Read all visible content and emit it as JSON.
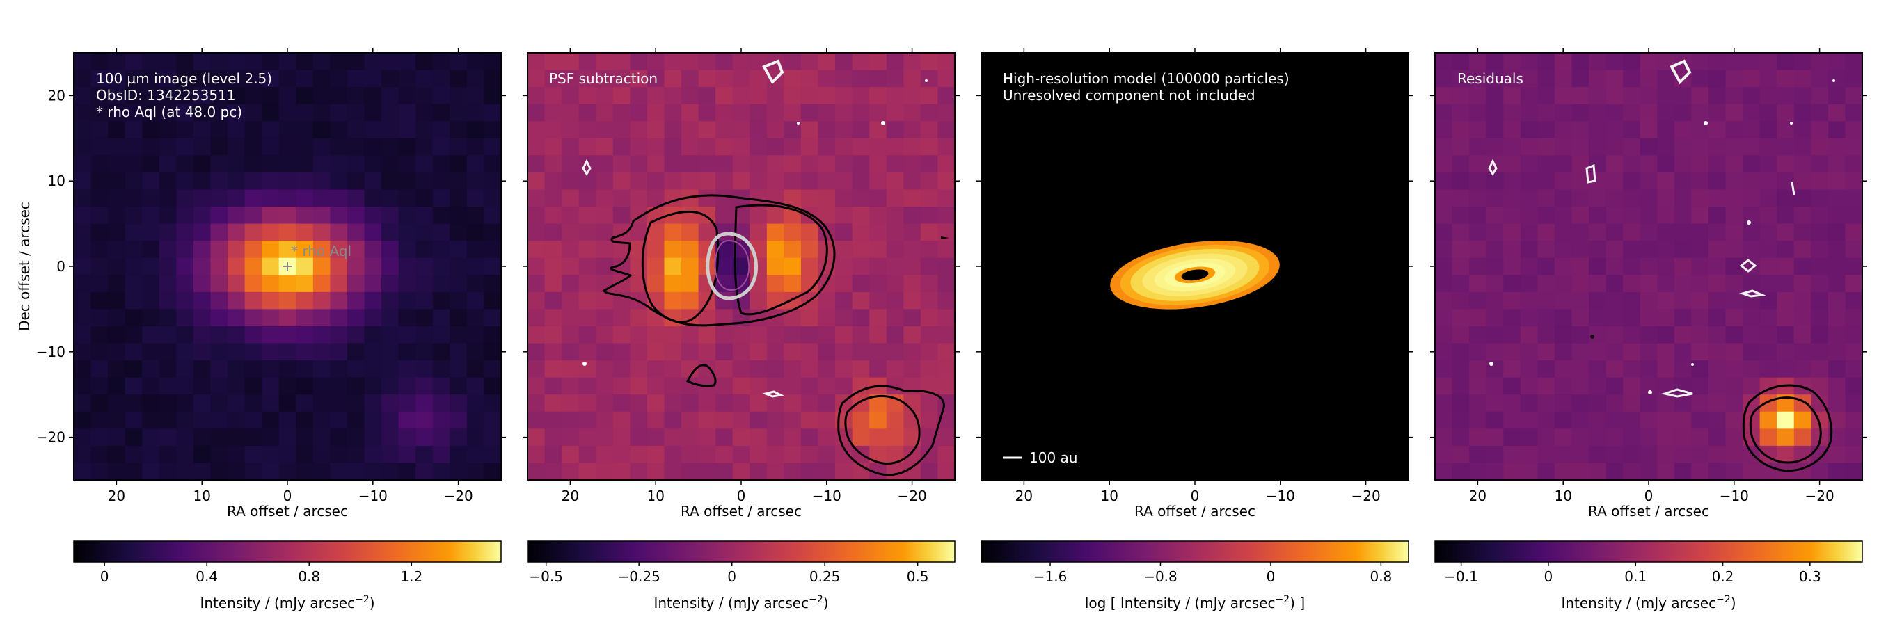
{
  "chart_data": [
    {
      "type": "heatmap",
      "panel_id": "p1",
      "annotation_lines": [
        "100 µm image (level 2.5)",
        "ObsID: 1342253511",
        "* rho Aql (at 48.0 pc)"
      ],
      "star_label": "* rho Aql",
      "star_position_arcsec": [
        0,
        0
      ],
      "xlabel": "RA offset / arcsec",
      "ylabel": "Dec offset / arcsec",
      "xlim": [
        25,
        -25
      ],
      "ylim": [
        -25,
        25
      ],
      "x_ticks": [
        20,
        10,
        0,
        -10,
        -20
      ],
      "y_ticks": [
        20,
        10,
        0,
        -10,
        -20
      ],
      "sources": [
        {
          "x": 0,
          "y": 0,
          "peak": 1.5,
          "sigma_x": 6.0,
          "sigma_y": 4.3
        },
        {
          "x": -16,
          "y": -18,
          "peak": 0.28,
          "sigma_x": 3.2,
          "sigma_y": 3.0
        }
      ],
      "background": 0.05,
      "colorbar": {
        "label": "Intensity / (mJy arcsec$^{-2}$)",
        "range": [
          -0.12,
          1.55
        ],
        "ticks": [
          "0",
          "0.4",
          "0.8",
          "1.2"
        ],
        "tick_values": [
          0,
          0.4,
          0.8,
          1.2
        ]
      }
    },
    {
      "type": "heatmap",
      "panel_id": "p2",
      "annotation_lines": [
        "PSF subtraction"
      ],
      "xlabel": "RA offset / arcsec",
      "xlim": [
        25,
        -25
      ],
      "ylim": [
        -25,
        25
      ],
      "x_ticks": [
        20,
        10,
        0,
        -10,
        -20
      ],
      "sources": [
        {
          "x": 7,
          "y": 0,
          "peak": 0.5,
          "sigma_x": 2.6,
          "sigma_y": 4.0
        },
        {
          "x": -5,
          "y": 1,
          "peak": 0.45,
          "sigma_x": 2.6,
          "sigma_y": 3.5
        },
        {
          "x": 1,
          "y": 0,
          "peak": -0.48,
          "sigma_x": 1.7,
          "sigma_y": 2.8
        },
        {
          "x": -16,
          "y": -18,
          "peak": 0.35,
          "sigma_x": 2.4,
          "sigma_y": 2.4
        }
      ],
      "background": 0.0,
      "colorbar": {
        "label": "Intensity / (mJy arcsec$^{-2}$)",
        "range": [
          -0.55,
          0.6
        ],
        "ticks": [
          "-0.5",
          "-0.25",
          "0",
          "0.25",
          "0.5"
        ],
        "tick_values": [
          -0.5,
          -0.25,
          0,
          0.25,
          0.5
        ]
      }
    },
    {
      "type": "heatmap",
      "panel_id": "p3",
      "annotation_lines": [
        "High-resolution model (100000 particles)",
        "Unresolved component not included"
      ],
      "scale_bar_label": "100 au",
      "xlabel": "RA offset / arcsec",
      "xlim": [
        25,
        -25
      ],
      "ylim": [
        -25,
        25
      ],
      "x_ticks": [
        20,
        10,
        0,
        -10,
        -20
      ],
      "disc": {
        "center": [
          0,
          -1
        ],
        "semi_major_arcsec": 10,
        "semi_minor_arcsec": 3.8,
        "position_angle_deg": 8
      },
      "colorbar": {
        "label": "log [ Intensity / (mJy arcsec$^{-2}$) ]",
        "range": [
          -2.1,
          1.0
        ],
        "ticks": [
          "-1.6",
          "-0.8",
          "0",
          "0.8"
        ],
        "tick_values": [
          -1.6,
          -0.8,
          0,
          0.8
        ]
      }
    },
    {
      "type": "heatmap",
      "panel_id": "p4",
      "annotation_lines": [
        "Residuals"
      ],
      "xlabel": "RA offset / arcsec",
      "xlim": [
        25,
        -25
      ],
      "ylim": [
        -25,
        25
      ],
      "x_ticks": [
        20,
        10,
        0,
        -10,
        -20
      ],
      "sources": [
        {
          "x": -16,
          "y": -18,
          "peak": 0.34,
          "sigma_x": 2.3,
          "sigma_y": 2.3
        }
      ],
      "background": 0.05,
      "colorbar": {
        "label": "Intensity / (mJy arcsec$^{-2}$)",
        "range": [
          -0.13,
          0.36
        ],
        "ticks": [
          "-0.1",
          "0",
          "0.1",
          "0.2",
          "0.3"
        ],
        "tick_values": [
          -0.1,
          0,
          0.1,
          0.2,
          0.3
        ]
      }
    }
  ]
}
